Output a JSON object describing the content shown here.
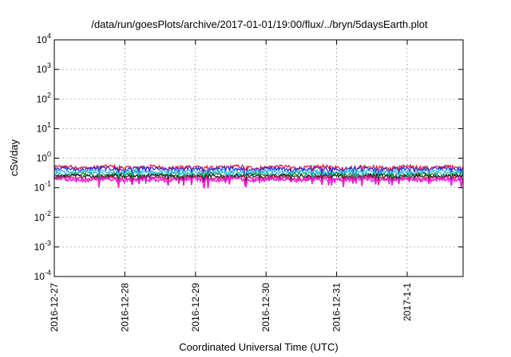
{
  "chart_data": {
    "type": "line",
    "title": "/data/run/goesPlots/archive/2017-01-01/19:00/flux/../bryn/5daysEarth.plot",
    "xlabel": "Coordinated Universal Time (UTC)",
    "ylabel": "cSv/day",
    "y_scale": "log",
    "ylim": [
      0.0001,
      10000
    ],
    "y_ticks": [
      {
        "base": "10",
        "exp": "4",
        "value": 10000
      },
      {
        "base": "10",
        "exp": "3",
        "value": 1000
      },
      {
        "base": "10",
        "exp": "2",
        "value": 100
      },
      {
        "base": "10",
        "exp": "1",
        "value": 10
      },
      {
        "base": "10",
        "exp": "0",
        "value": 1
      },
      {
        "base": "10",
        "exp": "-1",
        "value": 0.1
      },
      {
        "base": "10",
        "exp": "-2",
        "value": 0.01
      },
      {
        "base": "10",
        "exp": "-3",
        "value": 0.001
      },
      {
        "base": "10",
        "exp": "-4",
        "value": 0.0001
      }
    ],
    "xlim": [
      "2016-12-27 00:00",
      "2017-01-01 19:00"
    ],
    "x_ticks": [
      {
        "label": "2016-12-27",
        "date": "2016-12-27"
      },
      {
        "label": "2016-12-28",
        "date": "2016-12-28"
      },
      {
        "label": "2016-12-29",
        "date": "2016-12-29"
      },
      {
        "label": "2016-12-30",
        "date": "2016-12-30"
      },
      {
        "label": "2016-12-31",
        "date": "2016-12-31"
      },
      {
        "label": "2017-1-1",
        "date": "2017-01-01"
      }
    ],
    "grid": true,
    "series": [
      {
        "color": "#e8102a",
        "level": 0.5
      },
      {
        "color": "#2a2ad8",
        "level": 0.44
      },
      {
        "color": "#2fb8f0",
        "level": 0.36
      },
      {
        "color": "#27c0b8",
        "level": 0.31
      },
      {
        "color": "#1f8a3a",
        "level": 0.27
      },
      {
        "color": "#222222",
        "level": 0.245
      },
      {
        "color": "#d01070",
        "level": 0.215
      },
      {
        "color": "#ee22dd",
        "level": 0.19
      }
    ]
  }
}
